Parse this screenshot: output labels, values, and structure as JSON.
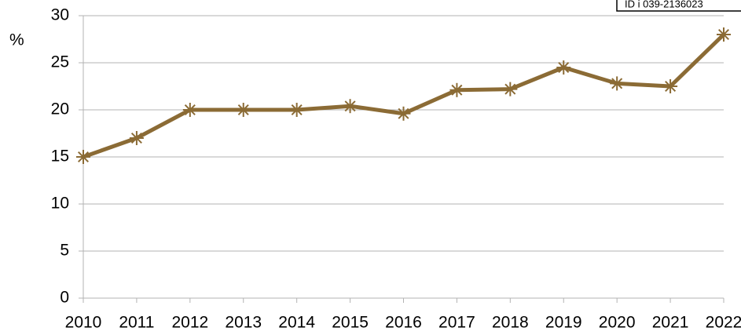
{
  "chart_data": {
    "type": "line",
    "y_label": "%",
    "annotation": "ID i 039-2136023",
    "categories": [
      "2010",
      "2011",
      "2012",
      "2013",
      "2014",
      "2015",
      "2016",
      "2017",
      "2018",
      "2019",
      "2020",
      "2021",
      "2022"
    ],
    "series": [
      {
        "name": null,
        "color": "#8b6b35",
        "values": [
          15,
          17,
          20,
          20,
          20,
          20.4,
          19.6,
          22.1,
          22.2,
          24.5,
          22.8,
          22.5,
          28
        ]
      }
    ],
    "ylim": [
      0,
      30
    ],
    "yticks": [
      0,
      5,
      10,
      15,
      20,
      25,
      30
    ],
    "grid": true
  }
}
